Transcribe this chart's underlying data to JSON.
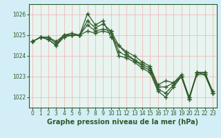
{
  "xlabel": "Graphe pression niveau de la mer (hPa)",
  "ylabel": "",
  "bg_color": "#d4eef7",
  "plot_bg_color": "#e8f4f0",
  "grid_color": "#f0b0b0",
  "line_color": "#2d5a27",
  "ylim": [
    1021.5,
    1026.5
  ],
  "xlim": [
    -0.5,
    23.5
  ],
  "yticks": [
    1022,
    1023,
    1024,
    1025,
    1026
  ],
  "xticks": [
    0,
    1,
    2,
    3,
    4,
    5,
    6,
    7,
    8,
    9,
    10,
    11,
    12,
    13,
    14,
    15,
    16,
    17,
    18,
    19,
    20,
    21,
    22,
    23
  ],
  "lines": [
    [
      1024.7,
      1024.9,
      1024.9,
      1024.7,
      1025.0,
      1025.1,
      1025.0,
      1026.05,
      1025.5,
      1025.7,
      1024.9,
      1024.5,
      1024.2,
      1024.0,
      1023.7,
      1023.5,
      1022.6,
      1022.8,
      1022.7,
      1023.1,
      1022.0,
      1023.2,
      1023.2,
      1022.3
    ],
    [
      1024.7,
      1024.9,
      1024.9,
      1024.6,
      1025.0,
      1025.0,
      1025.0,
      1025.7,
      1025.35,
      1025.55,
      1025.2,
      1024.5,
      1024.1,
      1023.8,
      1023.6,
      1023.4,
      1022.5,
      1022.5,
      1022.7,
      1023.0,
      1022.0,
      1023.1,
      1023.1,
      1022.2
    ],
    [
      1024.7,
      1024.9,
      1024.8,
      1024.5,
      1024.9,
      1025.0,
      1025.0,
      1025.5,
      1025.2,
      1025.3,
      1025.2,
      1024.2,
      1024.0,
      1023.8,
      1023.5,
      1023.3,
      1022.4,
      1022.2,
      1022.6,
      1023.0,
      1021.9,
      1023.2,
      1023.2,
      1022.2
    ],
    [
      1024.7,
      1024.9,
      1024.8,
      1024.5,
      1025.0,
      1025.0,
      1025.0,
      1025.2,
      1025.1,
      1025.2,
      1025.1,
      1024.0,
      1023.9,
      1023.7,
      1023.4,
      1023.2,
      1022.3,
      1022.0,
      1022.5,
      1023.0,
      1021.9,
      1023.2,
      1023.1,
      1022.2
    ]
  ],
  "tick_fontsize": 5.5,
  "label_fontsize": 7,
  "marker_size": 4,
  "line_width": 0.9
}
